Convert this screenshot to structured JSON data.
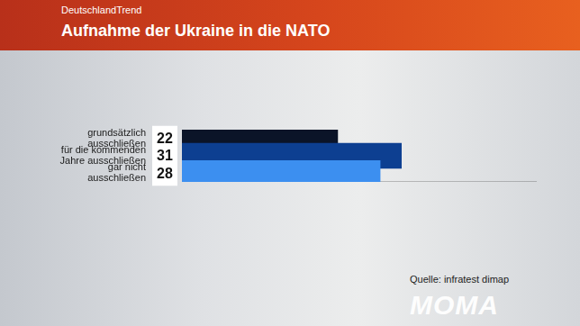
{
  "header": "DeutschlandTrend",
  "chart_data": {
    "type": "bar",
    "orientation": "horizontal",
    "title": "Aufnahme der Ukraine in die NATO",
    "categories": [
      "grundsätzlich ausschließen",
      "für die kommenden Jahre ausschließen",
      "gar nicht ausschließen"
    ],
    "values": [
      22,
      31,
      28
    ],
    "colors": [
      "#0b1428",
      "#0d3f91",
      "#3c8ff0"
    ],
    "xlim": [
      0,
      50
    ],
    "data_labels": true,
    "tick_labels": "y",
    "grid": false
  },
  "source": "Quelle: infratest dimap",
  "logo": "MOMA"
}
